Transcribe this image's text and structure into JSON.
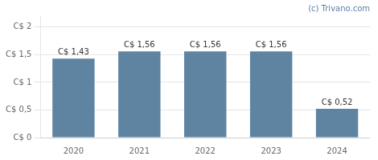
{
  "chart_data": {
    "type": "bar",
    "categories": [
      "2020",
      "2021",
      "2022",
      "2023",
      "2024"
    ],
    "values": [
      1.43,
      1.56,
      1.56,
      1.56,
      0.52
    ],
    "value_labels": [
      "C$ 1,43",
      "C$ 1,56",
      "C$ 1,56",
      "C$ 1,56",
      "C$ 0,52"
    ],
    "color": "#5f84a2",
    "ylim": [
      0,
      2.2
    ],
    "yticks": [
      {
        "value": 0,
        "label": "C$ 0"
      },
      {
        "value": 0.5,
        "label": "C$ 0,5"
      },
      {
        "value": 1.0,
        "label": "C$ 1"
      },
      {
        "value": 1.5,
        "label": "C$ 1,5"
      },
      {
        "value": 2.0,
        "label": "C$ 2"
      }
    ],
    "grid": true,
    "data_labels": true,
    "annotations": [
      {
        "text": "(c) Trivano.com"
      }
    ]
  }
}
